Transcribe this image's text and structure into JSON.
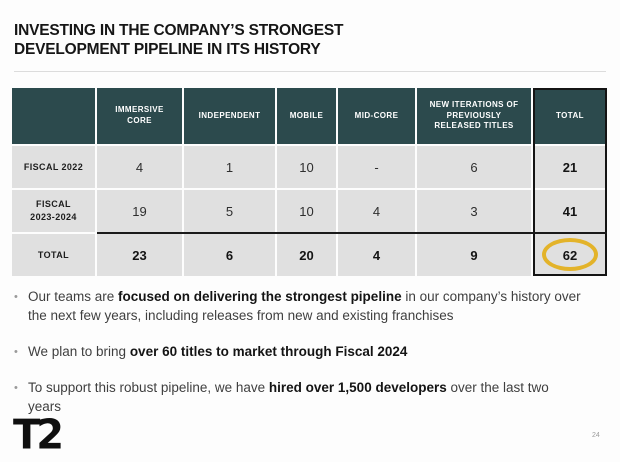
{
  "slide": {
    "title_line1": "INVESTING IN THE COMPANY’S STRONGEST",
    "title_line2": "DEVELOPMENT PIPELINE IN ITS HISTORY",
    "logo_text": "T2",
    "page_number": "24"
  },
  "table": {
    "columns": [
      "",
      "IMMERSIVE CORE",
      "INDEPENDENT",
      "MOBILE",
      "MID-CORE",
      "NEW ITERATIONS OF PREVIOUSLY RELEASED TITLES",
      "TOTAL"
    ],
    "rows": [
      {
        "label": "FISCAL 2022",
        "cells": [
          "4",
          "1",
          "10",
          "-",
          "6",
          "21"
        ]
      },
      {
        "label": "FISCAL 2023-2024",
        "cells": [
          "19",
          "5",
          "10",
          "4",
          "3",
          "41"
        ]
      },
      {
        "label": "TOTAL",
        "cells": [
          "23",
          "6",
          "20",
          "4",
          "9",
          "62"
        ]
      }
    ],
    "highlighted_value": "62",
    "colors": {
      "header_bg": "#2c4a4d",
      "cell_bg": "#e0e0e0",
      "total_outline": "#141414",
      "highlight_ellipse": "#e3b32a"
    }
  },
  "bullets": [
    {
      "pre": "Our teams are ",
      "bold": "focused on delivering the strongest pipeline",
      "post": " in our company’s history over the next few years, including releases from new and existing franchises"
    },
    {
      "pre": "We plan to bring ",
      "bold": "over 60 titles to market through Fiscal 2024",
      "post": ""
    },
    {
      "pre": "To support this robust pipeline, we have ",
      "bold": "hired over 1,500 developers",
      "post": " over the last two years"
    }
  ]
}
